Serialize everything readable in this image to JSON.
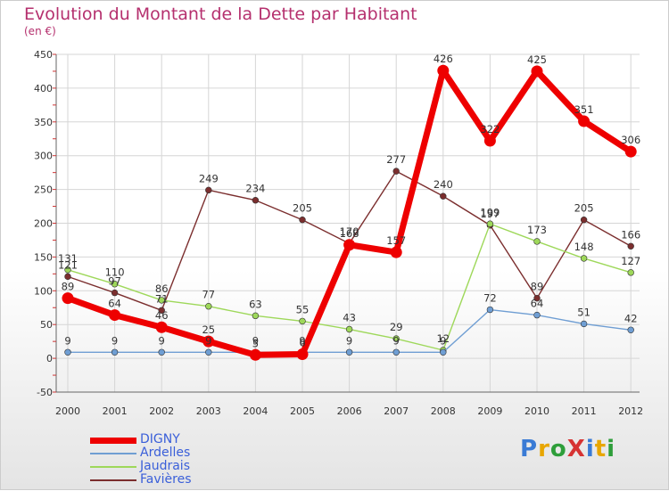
{
  "header": {
    "title": "Evolution du Montant de la Dette par Habitant",
    "subtitle": "(en €)"
  },
  "logo": {
    "text": "ProXiti",
    "colors": [
      "#3a7bd5",
      "#e8a600",
      "#2e9e3a",
      "#d63333",
      "#3a7bd5",
      "#e8a600",
      "#2e9e3a"
    ]
  },
  "chart_data": {
    "type": "line",
    "title": "Evolution du Montant de la Dette par Habitant",
    "subtitle": "(en €)",
    "categories": [
      "2000",
      "2001",
      "2002",
      "2003",
      "2004",
      "2005",
      "2006",
      "2007",
      "2008",
      "2009",
      "2010",
      "2011",
      "2012"
    ],
    "ylim": [
      -50,
      450
    ],
    "yticks": [
      -50,
      0,
      50,
      100,
      150,
      200,
      250,
      300,
      350,
      400,
      450
    ],
    "grid": true,
    "legend": "bottom-left",
    "series": [
      {
        "name": "DIGNY",
        "color": "#ee0000",
        "values": [
          89,
          64,
          46,
          25,
          5,
          6,
          168,
          157,
          426,
          322,
          425,
          351,
          306
        ],
        "labels": [
          "89",
          "64",
          "46",
          "25",
          "5",
          "6",
          "168",
          "157",
          "426",
          "322",
          "425",
          "351",
          "306"
        ]
      },
      {
        "name": "Ardelles",
        "color": "#6f9ed3",
        "values": [
          9,
          9,
          9,
          9,
          9,
          9,
          9,
          9,
          9,
          72,
          64,
          51,
          42
        ],
        "labels": [
          "9",
          "9",
          "9",
          "9",
          "9",
          "9",
          "9",
          "9",
          "9",
          "72",
          "64",
          "51",
          "42"
        ]
      },
      {
        "name": "Jaudrais",
        "color": "#9ed85a",
        "values": [
          131,
          110,
          86,
          77,
          63,
          55,
          43,
          29,
          12,
          199,
          173,
          148,
          127
        ],
        "labels": [
          "131",
          "110",
          "86",
          "77",
          "63",
          "55",
          "43",
          "29",
          "12",
          "199",
          "173",
          "148",
          "127"
        ]
      },
      {
        "name": "Favières",
        "color": "#7b2e2e",
        "values": [
          121,
          97,
          71,
          249,
          234,
          205,
          170,
          277,
          240,
          197,
          89,
          205,
          166
        ],
        "labels": [
          "121",
          "97",
          "71",
          "249",
          "234",
          "205",
          "170",
          "277",
          "240",
          "197",
          "89",
          "205",
          "166"
        ]
      }
    ]
  }
}
